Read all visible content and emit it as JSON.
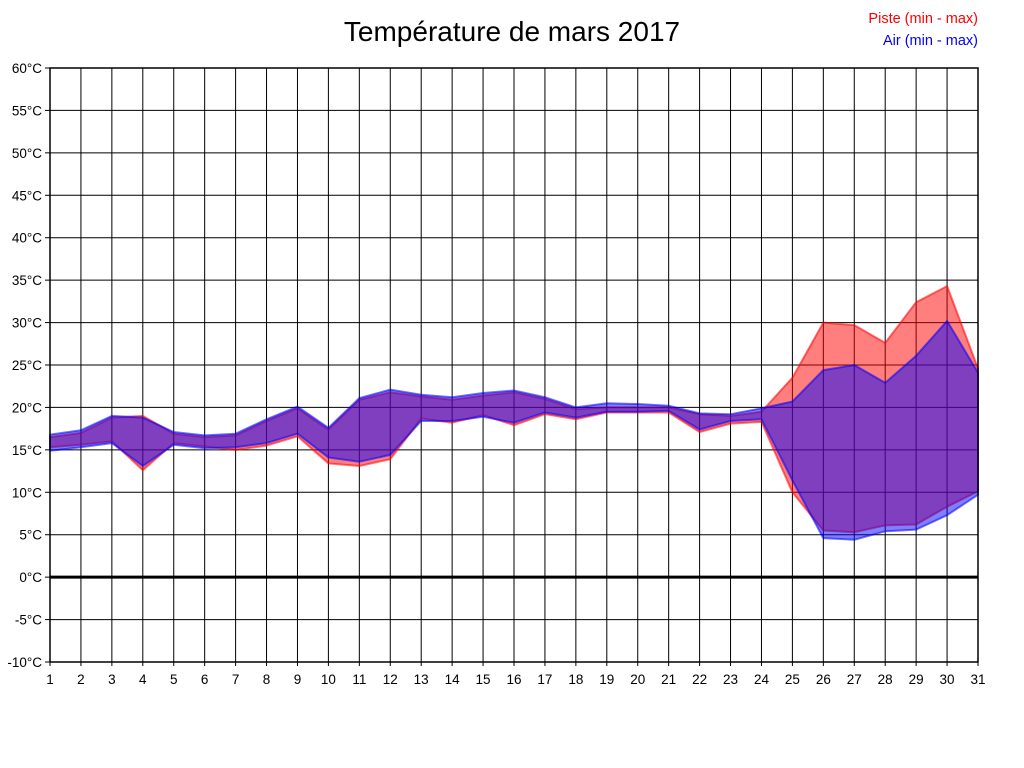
{
  "title": "Température de mars 2017",
  "legend": {
    "position": "top-right",
    "items": [
      {
        "label": "Piste (min - max)",
        "color": "#FF0000"
      },
      {
        "label": "Air (min - max)",
        "color": "#0000FF"
      }
    ]
  },
  "colors": {
    "background": "#FFFFFF",
    "grid": "#000000",
    "axis_text": "#000000",
    "piste_band": "#FF0000",
    "air_band": "#0000FF",
    "band_opacity": 0.5,
    "zero_line": "#000000"
  },
  "chart_data": {
    "type": "area",
    "title": "Température de mars 2017",
    "xlabel": "",
    "ylabel": "",
    "x": [
      1,
      2,
      3,
      4,
      5,
      6,
      7,
      8,
      9,
      10,
      11,
      12,
      13,
      14,
      15,
      16,
      17,
      18,
      19,
      20,
      21,
      22,
      23,
      24,
      25,
      26,
      27,
      28,
      29,
      30,
      31
    ],
    "x_tick_labels": [
      "1",
      "2",
      "3",
      "4",
      "5",
      "6",
      "7",
      "8",
      "9",
      "10",
      "11",
      "12",
      "13",
      "14",
      "15",
      "16",
      "17",
      "18",
      "19",
      "20",
      "21",
      "22",
      "23",
      "24",
      "25",
      "26",
      "27",
      "28",
      "29",
      "30",
      "31"
    ],
    "ylim": [
      -10,
      60
    ],
    "y_ticks": [
      {
        "value": 60,
        "label": "60°C"
      },
      {
        "value": 55,
        "label": "55°C"
      },
      {
        "value": 50,
        "label": "50°C"
      },
      {
        "value": 45,
        "label": "45°C"
      },
      {
        "value": 40,
        "label": "40°C"
      },
      {
        "value": 35,
        "label": "35°C"
      },
      {
        "value": 30,
        "label": "30°C"
      },
      {
        "value": 25,
        "label": "25°C"
      },
      {
        "value": 20,
        "label": "20°C"
      },
      {
        "value": 15,
        "label": "15°C"
      },
      {
        "value": 10,
        "label": "10°C"
      },
      {
        "value": 5,
        "label": "5°C"
      },
      {
        "value": 0,
        "label": "0°C"
      },
      {
        "value": -5,
        "label": "-5°C"
      },
      {
        "value": -10,
        "label": "-10°C"
      }
    ],
    "grid": true,
    "zero_line": {
      "value": 0,
      "bold": true
    },
    "legend_position": "top-right",
    "series": [
      {
        "name": "Piste (min - max)",
        "band_type": "min-max",
        "color": "#FF0000",
        "max": [
          16.5,
          17.0,
          18.8,
          19.0,
          16.9,
          16.5,
          16.7,
          18.4,
          19.9,
          17.4,
          20.9,
          21.8,
          21.3,
          20.9,
          21.4,
          21.8,
          21.0,
          19.8,
          20.0,
          20.0,
          20.0,
          19.2,
          19.0,
          19.5,
          23.5,
          30.0,
          29.7,
          27.6,
          32.4,
          34.3,
          24.6
        ],
        "min": [
          15.3,
          15.6,
          16.0,
          12.6,
          15.8,
          15.4,
          15.0,
          15.5,
          16.6,
          13.4,
          13.1,
          13.9,
          18.7,
          18.2,
          19.1,
          17.9,
          19.2,
          18.6,
          19.4,
          19.4,
          19.4,
          17.1,
          18.1,
          18.3,
          10.0,
          5.5,
          5.3,
          6.1,
          6.2,
          8.3,
          10.1
        ]
      },
      {
        "name": "Air (min - max)",
        "band_type": "min-max",
        "color": "#0000FF",
        "max": [
          16.8,
          17.3,
          19.0,
          18.8,
          17.1,
          16.7,
          16.9,
          18.6,
          20.1,
          17.6,
          21.1,
          22.1,
          21.5,
          21.2,
          21.7,
          22.0,
          21.2,
          20.0,
          20.5,
          20.4,
          20.2,
          19.3,
          19.2,
          19.9,
          20.7,
          24.4,
          25.0,
          22.9,
          26.1,
          30.2,
          24.1
        ],
        "min": [
          14.9,
          15.3,
          15.8,
          13.1,
          15.6,
          15.2,
          15.3,
          15.8,
          16.9,
          14.1,
          13.6,
          14.4,
          18.4,
          18.4,
          18.9,
          18.2,
          19.4,
          18.8,
          19.5,
          19.5,
          19.6,
          17.4,
          18.4,
          18.6,
          11.4,
          4.6,
          4.4,
          5.4,
          5.6,
          7.3,
          9.7
        ]
      }
    ]
  }
}
